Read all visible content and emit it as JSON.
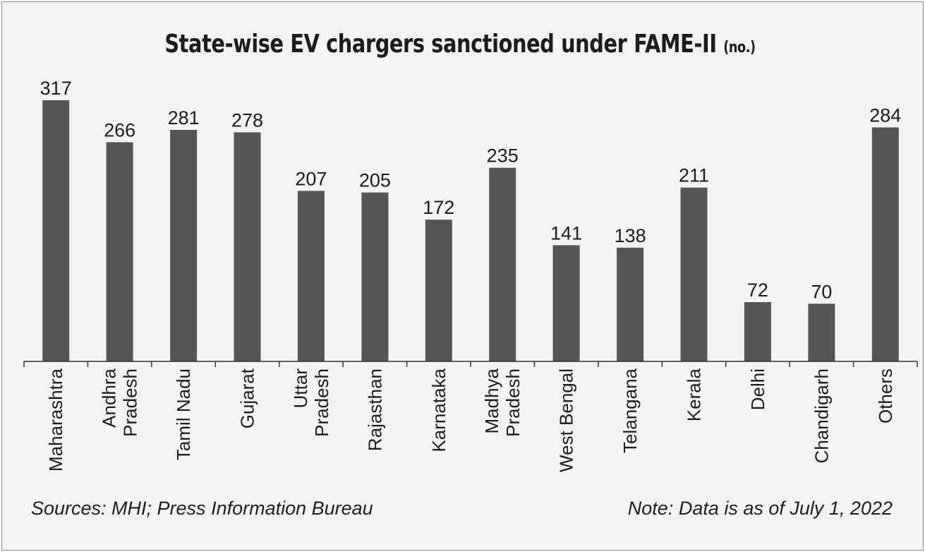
{
  "title": "State-wise EV chargers sanctioned under FAME-II",
  "title_unit": "(no.)",
  "source": "Sources: MHI; Press Information Bureau",
  "note": "Note: Data is as of July 1, 2022",
  "colors": {
    "bar": "#555557",
    "background": "#f3f3f4",
    "text": "#1c1c1c"
  },
  "chart_data": {
    "type": "bar",
    "categories": [
      [
        "Maharashtra"
      ],
      [
        "Andhra",
        "Pradesh"
      ],
      [
        "Tamil Nadu"
      ],
      [
        "Gujarat"
      ],
      [
        "Uttar",
        "Pradesh"
      ],
      [
        "Rajasthan"
      ],
      [
        "Karnataka"
      ],
      [
        "Madhya",
        "Pradesh"
      ],
      [
        "West Bengal"
      ],
      [
        "Telangana"
      ],
      [
        "Kerala"
      ],
      [
        "Delhi"
      ],
      [
        "Chandigarh"
      ],
      [
        "Others"
      ]
    ],
    "values": [
      317,
      266,
      281,
      278,
      207,
      205,
      172,
      235,
      141,
      138,
      211,
      72,
      70,
      284
    ],
    "data_labels": [
      "317",
      "266",
      "281",
      "278",
      "207",
      "205",
      "172",
      "235",
      "141",
      "138",
      "211",
      "72",
      "70",
      "284"
    ],
    "ylim": [
      0,
      317
    ],
    "xlabel": "",
    "ylabel": "",
    "grid": false,
    "legend": "none",
    "x_tick_rotation": "vertical"
  }
}
